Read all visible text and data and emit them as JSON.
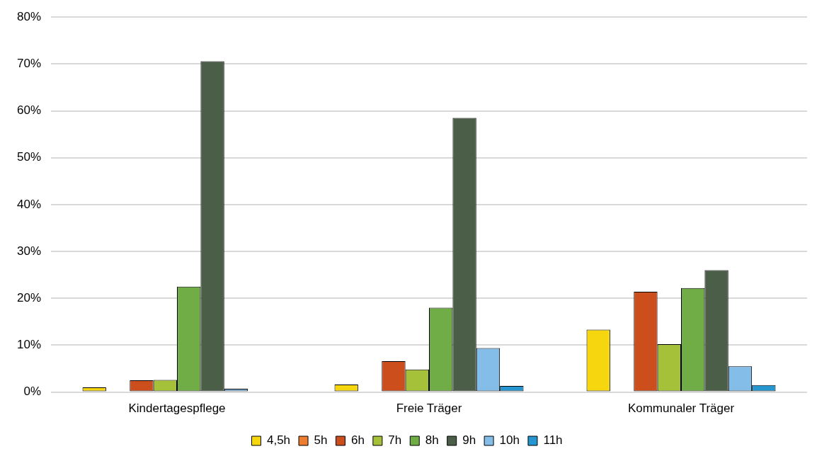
{
  "chart_data": {
    "type": "bar",
    "categories": [
      "Kindertagespflege",
      "Freie Träger",
      "Kommunaler Träger"
    ],
    "series": [
      {
        "name": "4,5h",
        "color": "#f5d60f",
        "values": [
          1.0,
          1.6,
          13.3
        ]
      },
      {
        "name": "5h",
        "color": "#ed7d31",
        "values": [
          0,
          0,
          0
        ]
      },
      {
        "name": "6h",
        "color": "#cc4e1c",
        "values": [
          2.5,
          6.6,
          21.4
        ]
      },
      {
        "name": "7h",
        "color": "#a5c13a",
        "values": [
          2.6,
          4.8,
          10.2
        ]
      },
      {
        "name": "8h",
        "color": "#70ad47",
        "values": [
          22.5,
          18.0,
          22.2
        ]
      },
      {
        "name": "9h",
        "color": "#4b5f48",
        "values": [
          70.6,
          58.5,
          26.0
        ]
      },
      {
        "name": "10h",
        "color": "#83bde8",
        "values": [
          0.7,
          9.4,
          5.5
        ]
      },
      {
        "name": "11h",
        "color": "#2596d0",
        "values": [
          0,
          1.3,
          1.5
        ]
      }
    ],
    "ylim": [
      0,
      80
    ],
    "yticks": [
      {
        "value": 0,
        "label": "0%"
      },
      {
        "value": 10,
        "label": "10%"
      },
      {
        "value": 20,
        "label": "20%"
      },
      {
        "value": 30,
        "label": "30%"
      },
      {
        "value": 40,
        "label": "40%"
      },
      {
        "value": 50,
        "label": "50%"
      },
      {
        "value": 60,
        "label": "60%"
      },
      {
        "value": 70,
        "label": "70%"
      },
      {
        "value": 80,
        "label": "80%"
      }
    ],
    "grid": "y",
    "legend": "bottom"
  }
}
